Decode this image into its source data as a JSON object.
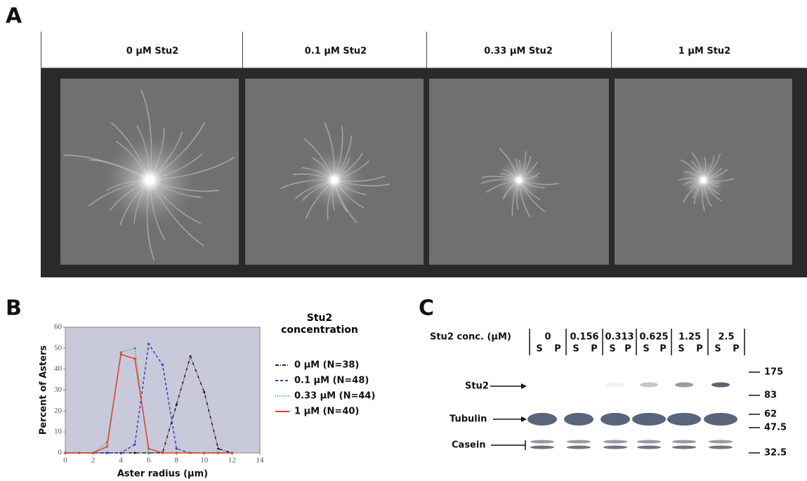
{
  "panel_labels": [
    "A",
    "B",
    "C"
  ],
  "panel_a": {
    "columns": [
      "0 μM Stu2",
      "0.1 μM Stu2",
      "0.33 μM Stu2",
      "1 μM Stu2"
    ]
  },
  "chart_data": {
    "type": "line",
    "xlabel": "Aster radius (μm)",
    "ylabel": "Percent of Asters",
    "legend_title": "Stu2 concentration",
    "x": [
      0,
      1,
      2,
      3,
      4,
      5,
      6,
      7,
      8,
      9,
      10,
      11,
      12
    ],
    "series": [
      {
        "name": "0 μM (N=38)",
        "color": "#222222",
        "values": [
          0,
          0,
          0,
          0,
          0,
          0,
          0,
          0,
          23,
          46,
          29,
          2,
          0
        ]
      },
      {
        "name": "0.1 μM (N=48)",
        "color": "#3a3ac8",
        "values": [
          0,
          0,
          0,
          0,
          0,
          4,
          52,
          42,
          2,
          0,
          0,
          0,
          0
        ]
      },
      {
        "name": "0.33 μM (N=44)",
        "color": "#2ea84a",
        "values": [
          0,
          0,
          0,
          5,
          48,
          50,
          0,
          0,
          0,
          0,
          0,
          0,
          0
        ]
      },
      {
        "name": "1 μM (N=40)",
        "color": "#e8402a",
        "values": [
          0,
          0,
          0,
          3,
          47,
          45,
          2,
          0,
          0,
          0,
          0,
          0,
          0
        ]
      }
    ],
    "xlim": [
      0,
      14
    ],
    "ylim": [
      0,
      60
    ],
    "xticks": [
      0,
      2,
      4,
      6,
      8,
      10,
      12,
      14
    ],
    "yticks": [
      0,
      10,
      20,
      30,
      40,
      50,
      60
    ],
    "background": "#c9c9dc",
    "grid": false
  },
  "panel_c": {
    "header": "Stu2 conc. (μM)",
    "concentrations": [
      "0",
      "0.156",
      "0.313",
      "0.625",
      "1.25",
      "2.5"
    ],
    "lanes": [
      "S",
      "P"
    ],
    "rows": [
      "Stu2",
      "Tubulin",
      "Casein"
    ],
    "markers": [
      "175",
      "83",
      "62",
      "47.5",
      "32.5"
    ]
  }
}
